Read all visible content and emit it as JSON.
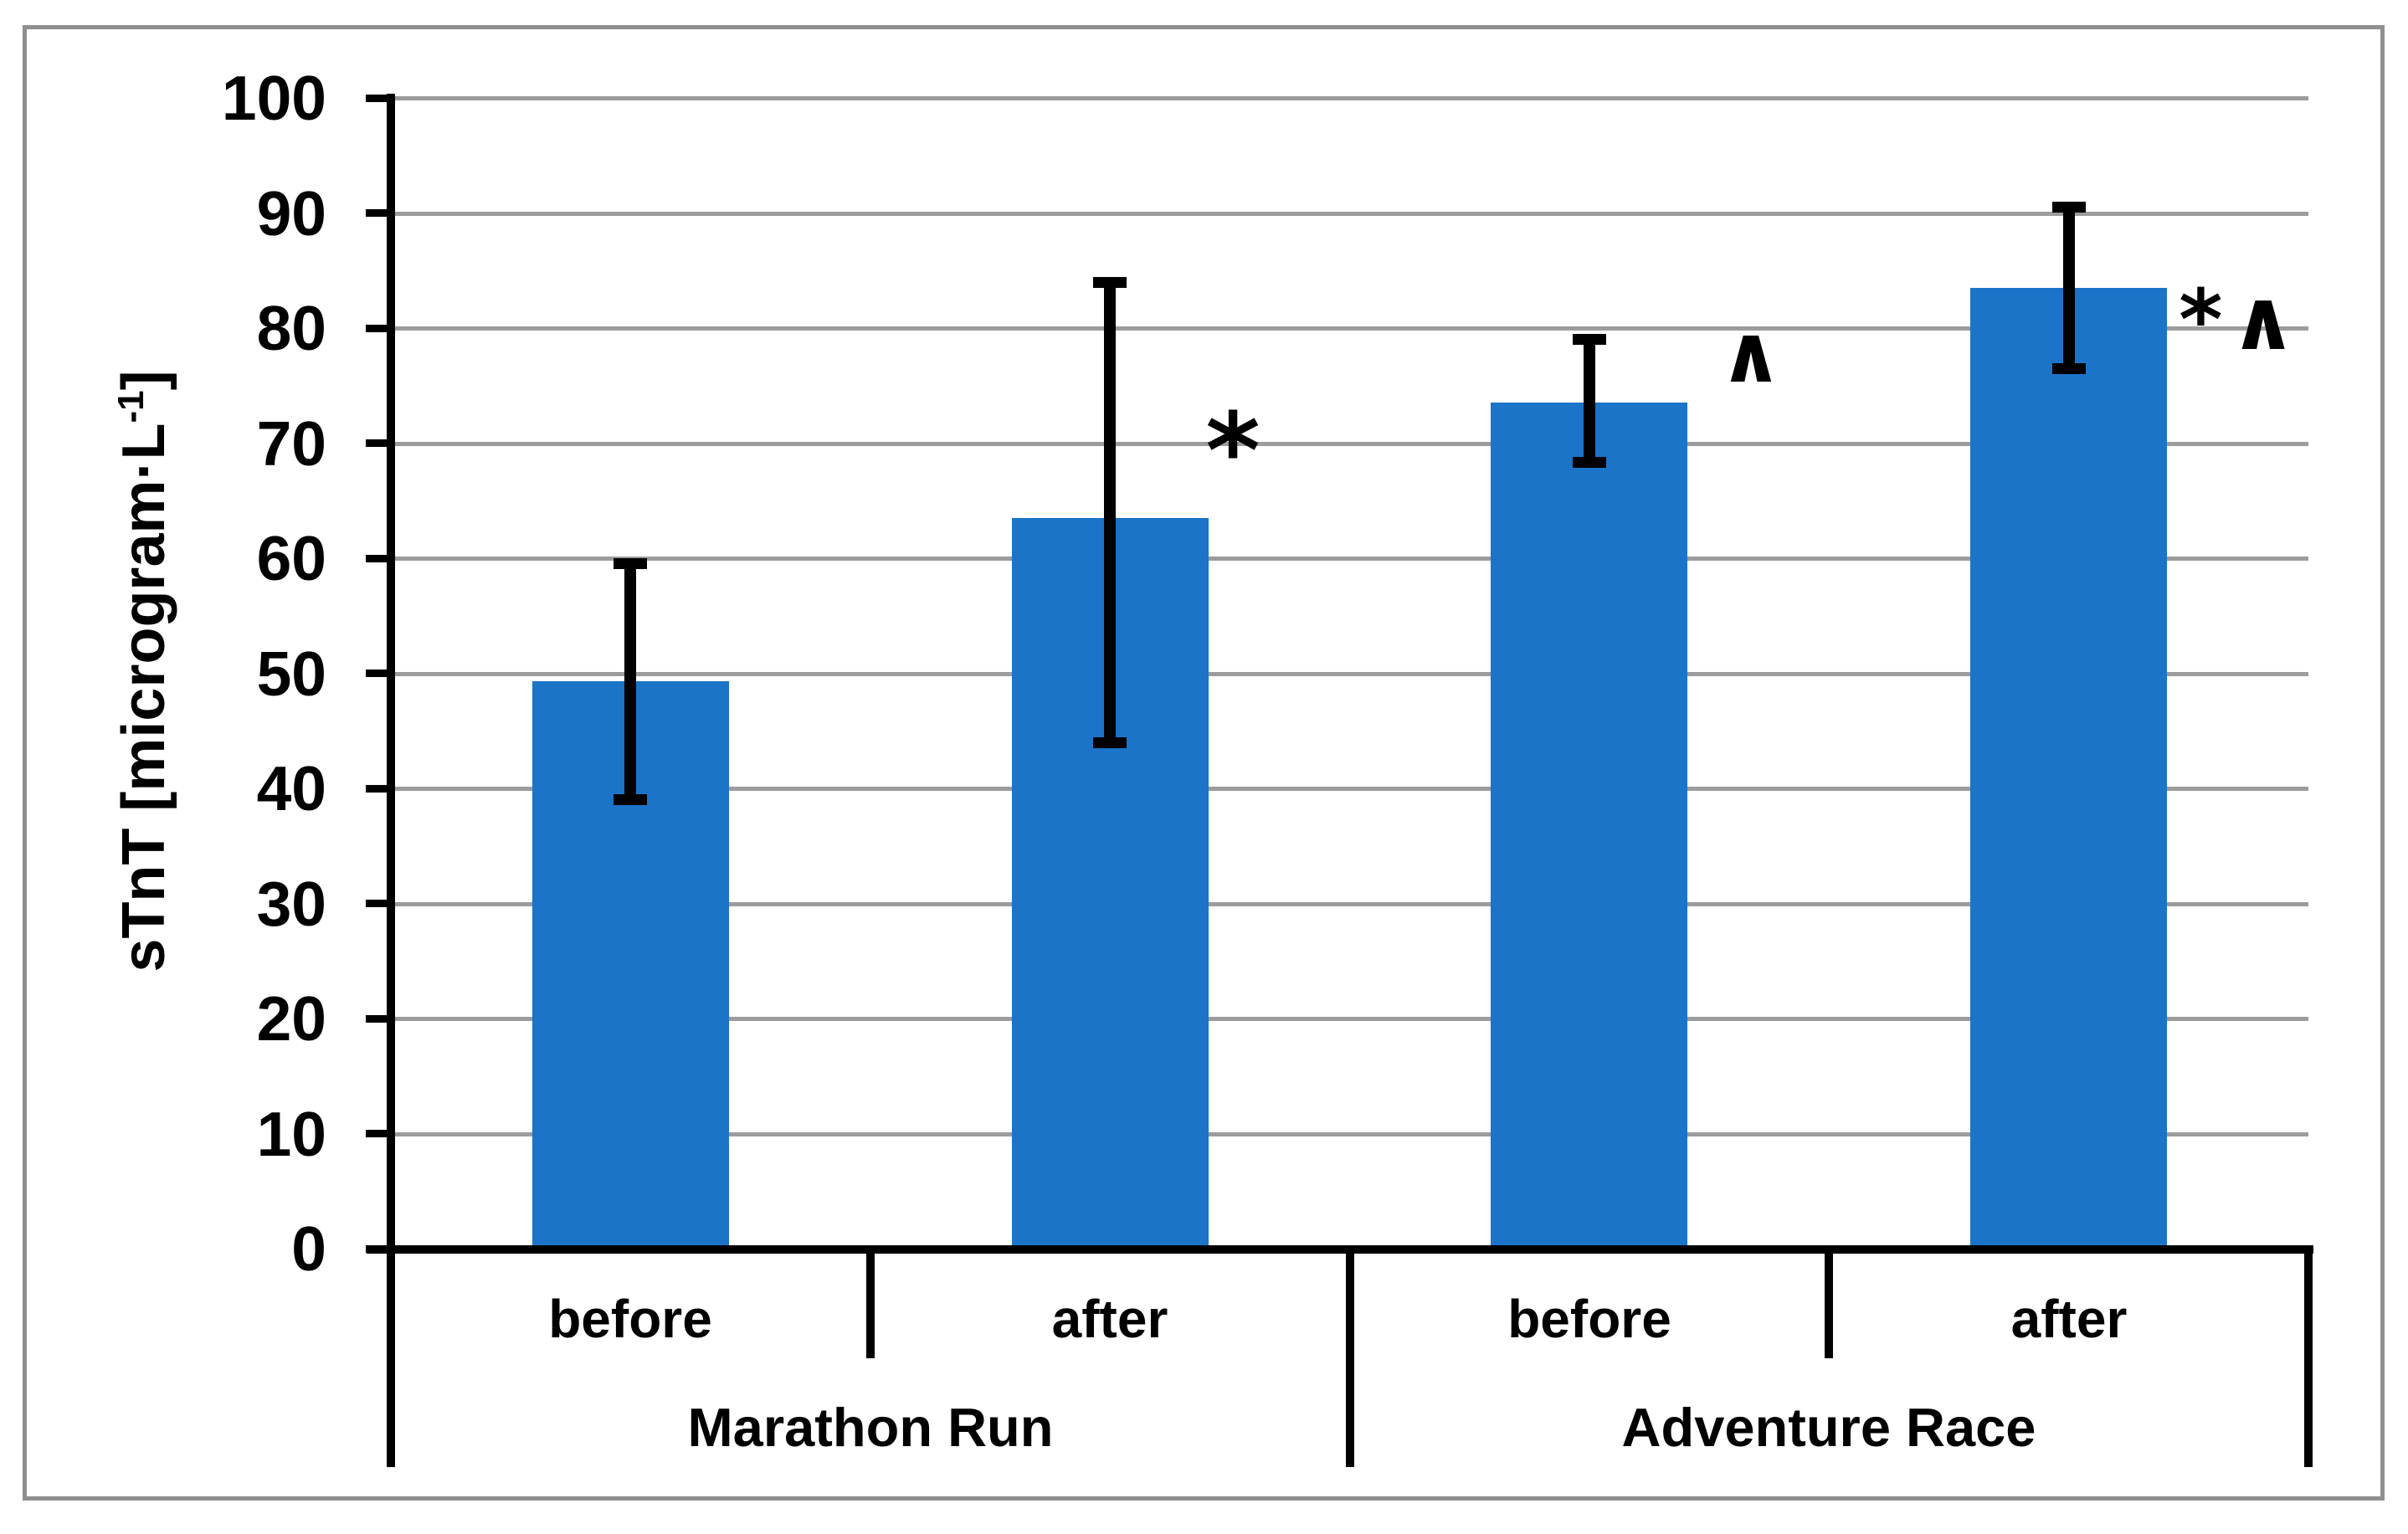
{
  "chart_data": {
    "type": "bar",
    "title": "",
    "y_axis": {
      "label_prefix": "sTnT [microgram·L",
      "label_superscript": "-1",
      "label_suffix": "]",
      "label_full": "sTnT [microgram·L⁻¹]",
      "ticks": [
        "0",
        "10",
        "20",
        "30",
        "40",
        "50",
        "60",
        "70",
        "80",
        "90",
        "100"
      ],
      "range": [
        0,
        100
      ],
      "gridlines": true
    },
    "legend": null,
    "bar_color": "#1b74c8",
    "gridline_color": "#9c9c9c",
    "frame_color": "#8f8f8f",
    "categories": [
      "before",
      "after",
      "before",
      "after"
    ],
    "groups": [
      {
        "label": "Marathon Run",
        "bars": [
          {
            "category": "before",
            "value": 49.3,
            "error_low": 39.0,
            "error_high": 59.5,
            "annotation": ""
          },
          {
            "category": "after",
            "value": 63.5,
            "error_low": 44.0,
            "error_high": 84.0,
            "annotation": "*"
          }
        ]
      },
      {
        "label": "Adventure Race",
        "bars": [
          {
            "category": "before",
            "value": 73.5,
            "error_low": 68.3,
            "error_high": 79.0,
            "annotation": "∧"
          },
          {
            "category": "after",
            "value": 83.5,
            "error_low": 76.5,
            "error_high": 90.5,
            "annotation": "*∧"
          }
        ]
      }
    ]
  }
}
